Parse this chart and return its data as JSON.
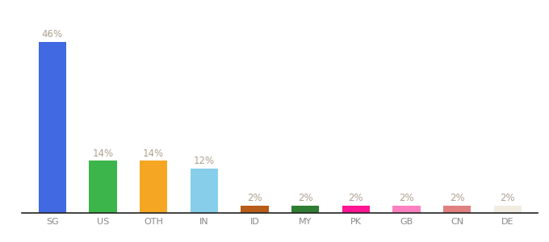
{
  "categories": [
    "SG",
    "US",
    "OTH",
    "IN",
    "ID",
    "MY",
    "PK",
    "GB",
    "CN",
    "DE"
  ],
  "values": [
    46,
    14,
    14,
    12,
    2,
    2,
    2,
    2,
    2,
    2
  ],
  "bar_colors": [
    "#4169e1",
    "#3cb54a",
    "#f5a623",
    "#87ceeb",
    "#b85c1a",
    "#2e7d32",
    "#ff1493",
    "#ff80c0",
    "#e08080",
    "#f0ede0"
  ],
  "labels": [
    "46%",
    "14%",
    "14%",
    "12%",
    "2%",
    "2%",
    "2%",
    "2%",
    "2%",
    "2%"
  ],
  "ylim": [
    0,
    52
  ],
  "background_color": "#ffffff",
  "label_color": "#b0a090",
  "label_fontsize": 8.5,
  "tick_color": "#888888",
  "tick_fontsize": 8,
  "bar_width": 0.55,
  "bottom_spine_color": "#222222"
}
